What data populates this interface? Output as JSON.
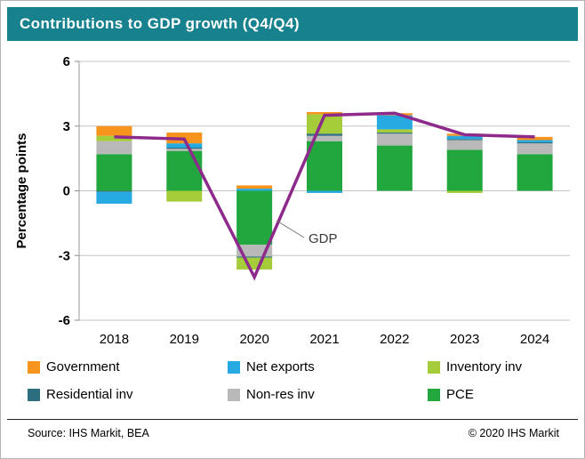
{
  "header": {
    "title": "Contributions to GDP growth (Q4/Q4)"
  },
  "chart_data": {
    "type": "bar",
    "subtype": "stacked-bar-with-line",
    "title": "Contributions to GDP growth (Q4/Q4)",
    "xlabel": "",
    "ylabel": "Percentage points",
    "ylim": [
      -6,
      6
    ],
    "yticks": [
      6,
      3,
      0,
      -3,
      -6
    ],
    "grid": true,
    "legend_position": "bottom",
    "categories": [
      "2018",
      "2019",
      "2020",
      "2021",
      "2022",
      "2023",
      "2024"
    ],
    "stack_order": [
      "PCE",
      "Non-res inv",
      "Residential inv",
      "Inventory inv",
      "Net exports",
      "Government"
    ],
    "series": [
      {
        "name": "Government",
        "color": "#F7941D",
        "values": [
          0.45,
          0.5,
          0.15,
          0.1,
          0.1,
          0.1,
          0.15
        ]
      },
      {
        "name": "Net exports",
        "color": "#27AAE1",
        "values": [
          -0.55,
          0.2,
          0.1,
          -0.1,
          0.65,
          0.15,
          0.1
        ]
      },
      {
        "name": "Inventory inv",
        "color": "#A5CD39",
        "values": [
          0.25,
          -0.5,
          -0.55,
          0.9,
          0.15,
          -0.1,
          0.0
        ]
      },
      {
        "name": "Residential inv",
        "color": "#2C6E80",
        "values": [
          -0.05,
          0.05,
          -0.05,
          0.1,
          0.05,
          0.05,
          0.05
        ]
      },
      {
        "name": "Non-res inv",
        "color": "#B9B9B9",
        "values": [
          0.6,
          0.1,
          -0.55,
          0.25,
          0.55,
          0.45,
          0.5
        ]
      },
      {
        "name": "PCE",
        "color": "#22A63E",
        "values": [
          1.7,
          1.85,
          -2.5,
          2.3,
          2.1,
          1.9,
          1.7
        ]
      }
    ],
    "line_series": {
      "name": "GDP",
      "color": "#8E2A8B",
      "values": [
        2.5,
        2.4,
        -4.0,
        3.5,
        3.6,
        2.6,
        2.5
      ]
    },
    "annotation": {
      "label": "GDP"
    }
  },
  "legend": {
    "items": [
      {
        "label": "Government",
        "color": "#F7941D"
      },
      {
        "label": "Net exports",
        "color": "#27AAE1"
      },
      {
        "label": "Inventory inv",
        "color": "#A5CD39"
      },
      {
        "label": "Residential inv",
        "color": "#2C6E80"
      },
      {
        "label": "Non-res inv",
        "color": "#B9B9B9"
      },
      {
        "label": "PCE",
        "color": "#22A63E"
      }
    ]
  },
  "footer": {
    "source": "Source:  IHS Markit, BEA",
    "copyright": "© 2020  IHS Markit"
  }
}
